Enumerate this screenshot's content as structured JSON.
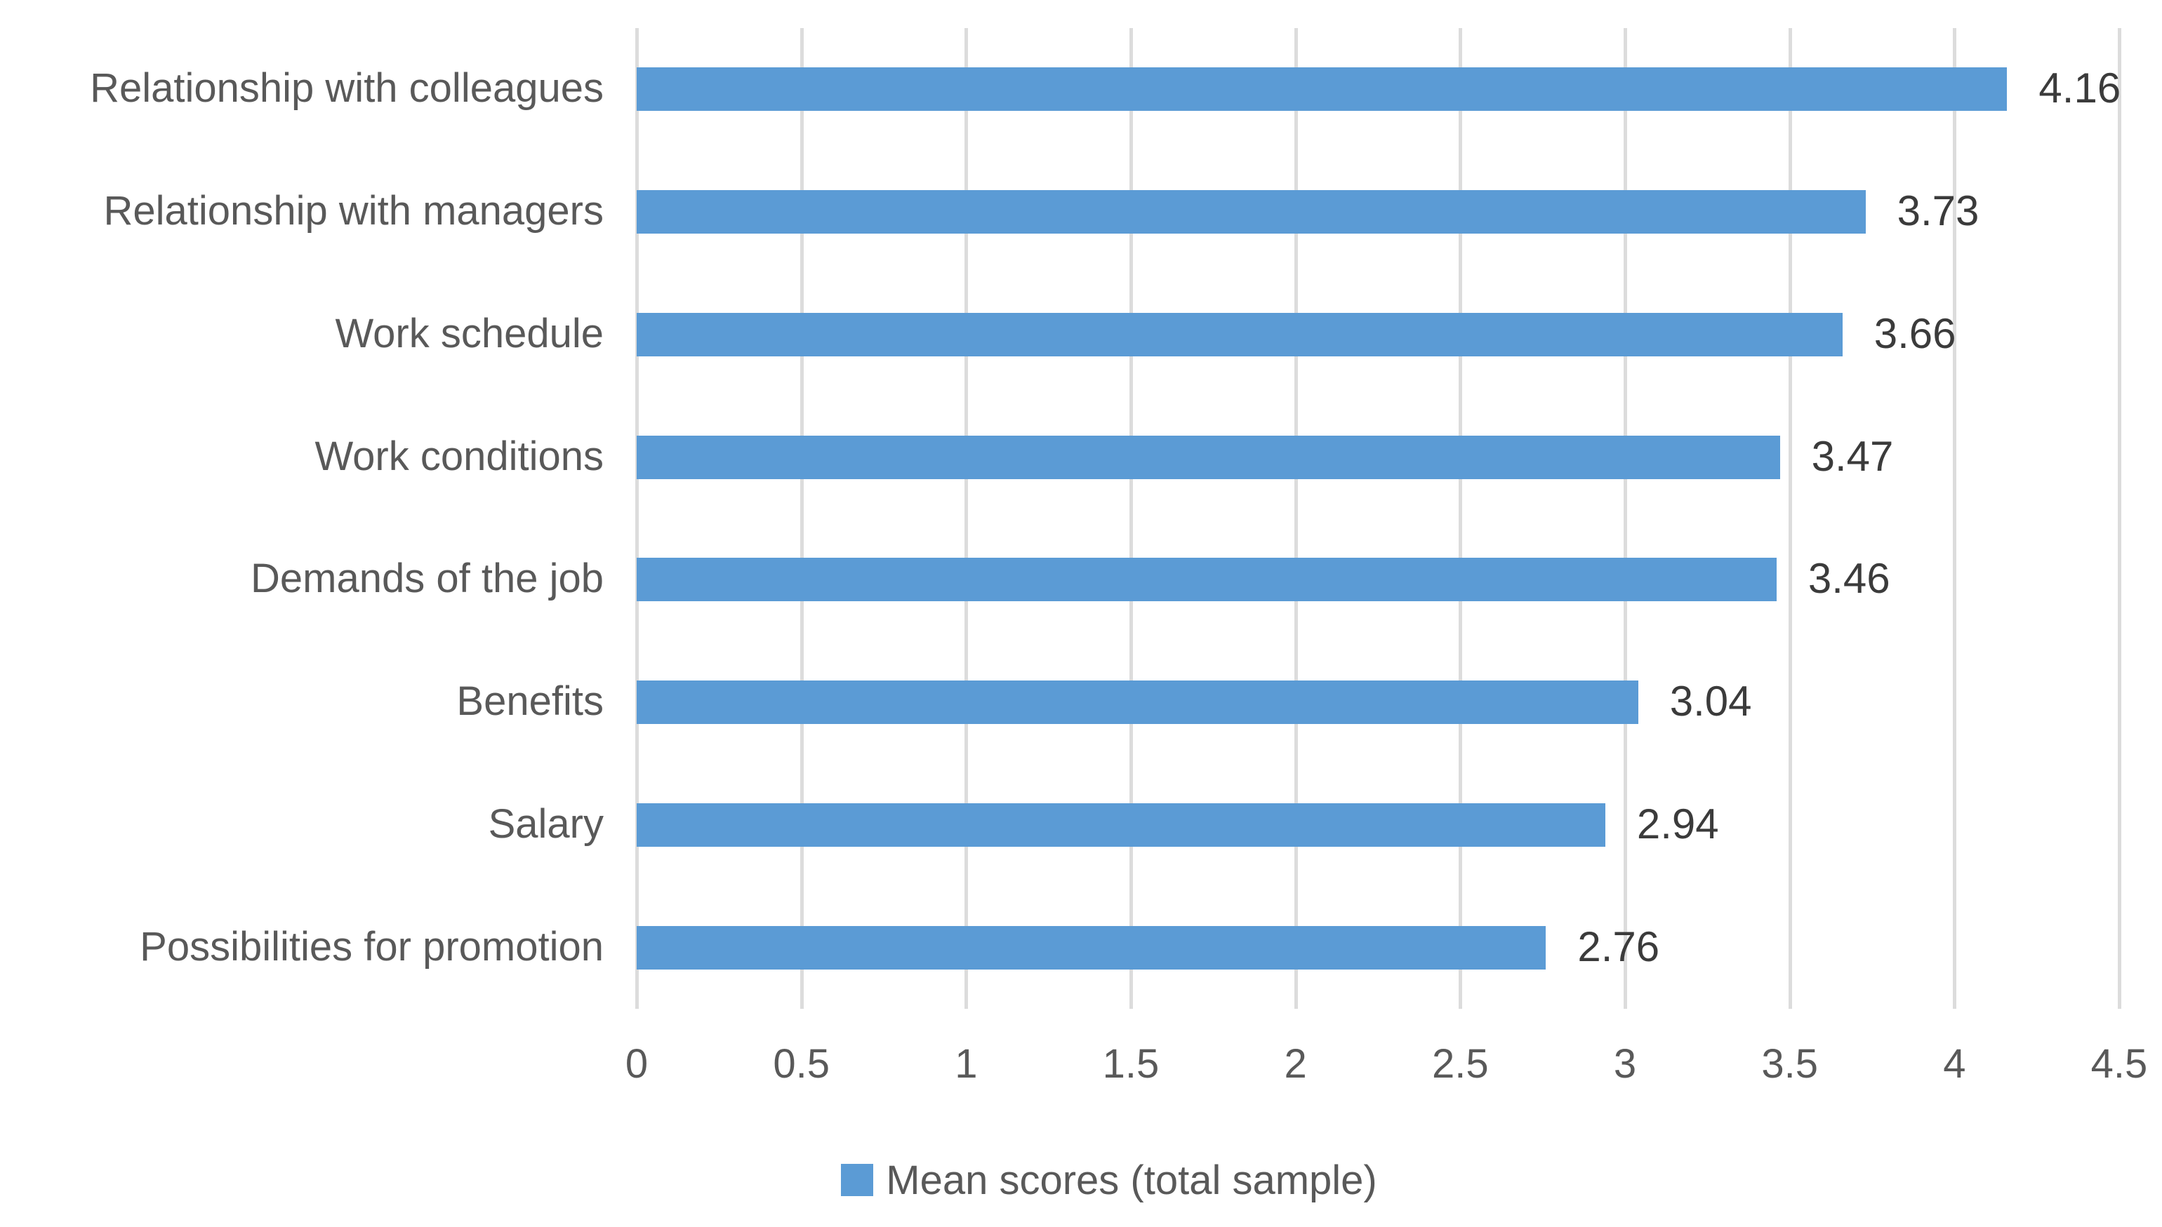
{
  "chart_data": {
    "type": "bar",
    "orientation": "horizontal",
    "title": "",
    "series_name": "Mean scores (total sample)",
    "categories": [
      "Relationship with colleagues",
      "Relationship with managers",
      "Work schedule",
      "Work conditions",
      "Demands of the job",
      "Benefits",
      "Salary",
      "Possibilities for promotion"
    ],
    "values": [
      4.16,
      3.73,
      3.66,
      3.47,
      3.46,
      3.04,
      2.94,
      2.76
    ],
    "value_labels": [
      "4.16",
      "3.73",
      "3.66",
      "3.47",
      "3.46",
      "3.04",
      "2.94",
      "2.76"
    ],
    "xlim": [
      0,
      4.5
    ],
    "x_ticks": [
      0,
      0.5,
      1,
      1.5,
      2,
      2.5,
      3,
      3.5,
      4,
      4.5
    ],
    "x_tick_labels": [
      "0",
      "0.5",
      "1",
      "1.5",
      "2",
      "2.5",
      "3",
      "3.5",
      "4",
      "4.5"
    ],
    "grid": "vertical-only",
    "legend_position": "bottom-center",
    "colors": {
      "bar": "#5B9BD5",
      "gridline": "#DCDCDC",
      "axis_labels": "#595959",
      "data_labels": "#3B3B3B",
      "background": "#FFFFFF"
    }
  },
  "legend": {
    "label": "Mean scores (total sample)",
    "marker_color": "#5B9BD5"
  }
}
